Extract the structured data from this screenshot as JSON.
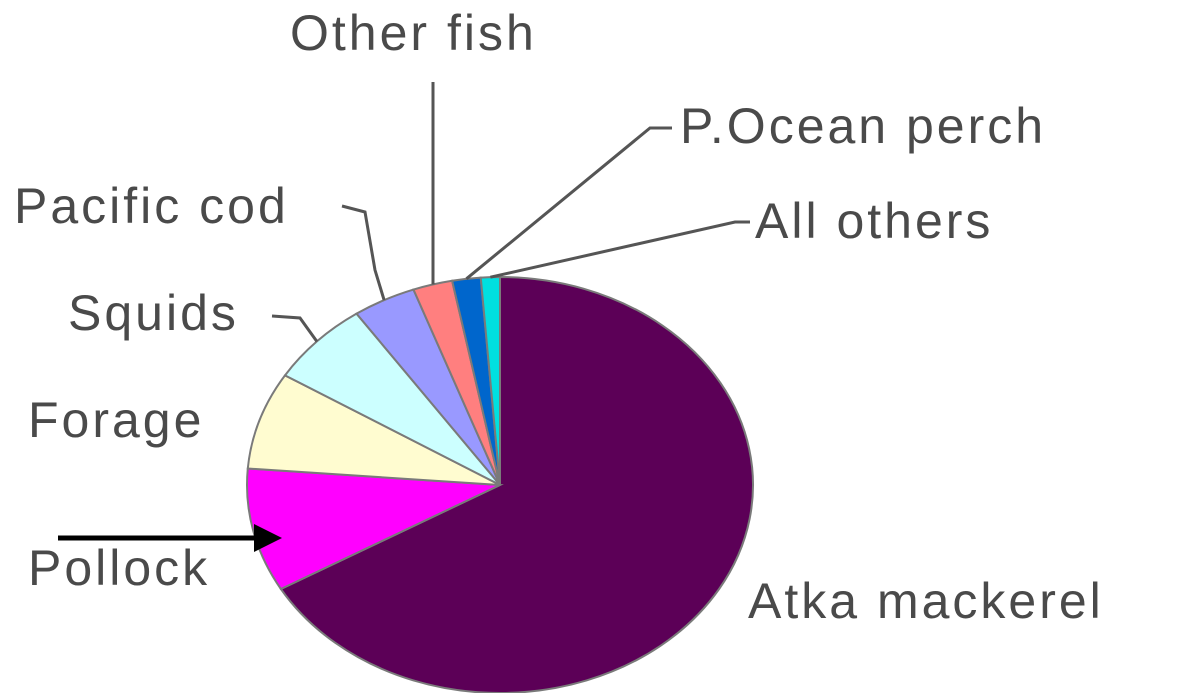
{
  "chart_data": {
    "type": "pie",
    "title": "",
    "start_angle_deg": 0,
    "direction": "clockwise",
    "slices": [
      {
        "label": "Atka mackerel",
        "value": 66.0,
        "color": "#5c0057"
      },
      {
        "label": "Pollock",
        "value": 9.5,
        "color": "#ff00ff"
      },
      {
        "label": "Forage",
        "value": 7.5,
        "color": "#fffcd0"
      },
      {
        "label": "Squids",
        "value": 6.5,
        "color": "#ccffff"
      },
      {
        "label": "Pacific cod",
        "value": 4.0,
        "color": "#9999ff"
      },
      {
        "label": "Other fish",
        "value": 2.5,
        "color": "#ff7f7f"
      },
      {
        "label": "P.Ocean perch",
        "value": 1.8,
        "color": "#0066cc"
      },
      {
        "label": "All others",
        "value": 1.2,
        "color": "#00e0e0"
      }
    ]
  }
}
